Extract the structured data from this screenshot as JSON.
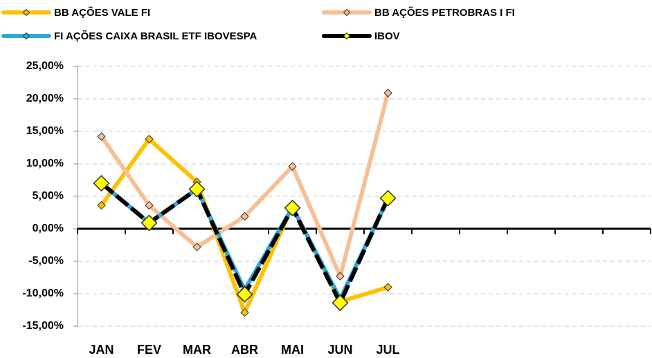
{
  "chart_data": {
    "type": "line",
    "categories": [
      "JAN",
      "FEV",
      "MAR",
      "ABR",
      "MAI",
      "JUN",
      "JUL",
      null,
      null,
      null,
      null,
      null
    ],
    "series": [
      {
        "name": "BB AÇÕES VALE FI",
        "color": "#FFC000",
        "values": [
          3.6,
          13.8,
          7.2,
          -12.9,
          3.4,
          -11.2,
          -9.0,
          null,
          null,
          null,
          null,
          null
        ]
      },
      {
        "name": "BB AÇÕES PETROBRAS I FI",
        "color": "#F8BE94",
        "values": [
          14.2,
          3.6,
          -2.8,
          1.9,
          9.6,
          -7.3,
          20.9,
          null,
          null,
          null,
          null,
          null
        ]
      },
      {
        "name": "FI AÇÕES CAIXA BRASIL ETF IBOVESPA",
        "color": "#2EA8E0",
        "values": [
          7.0,
          0.9,
          6.1,
          -9.4,
          3.3,
          -10.8,
          4.6,
          null,
          null,
          null,
          null,
          null
        ]
      },
      {
        "name": "IBOV",
        "color": "#000000",
        "marker_color": "#FFFF00",
        "values": [
          7.0,
          0.9,
          6.1,
          -10.1,
          3.2,
          -11.4,
          4.7,
          null,
          null,
          null,
          null,
          null
        ]
      }
    ],
    "ylim": [
      -15,
      25
    ],
    "yticks": [
      {
        "value": -15,
        "label": "-15,00%"
      },
      {
        "value": -10,
        "label": "-10,00%"
      },
      {
        "value": -5,
        "label": "-5,00%"
      },
      {
        "value": 0,
        "label": "0,00%"
      },
      {
        "value": 5,
        "label": "5,00%"
      },
      {
        "value": 10,
        "label": "10,00%"
      },
      {
        "value": 15,
        "label": "15,00%"
      },
      {
        "value": 20,
        "label": "20,00%"
      },
      {
        "value": 25,
        "label": "25,00%"
      }
    ],
    "grid": true
  }
}
